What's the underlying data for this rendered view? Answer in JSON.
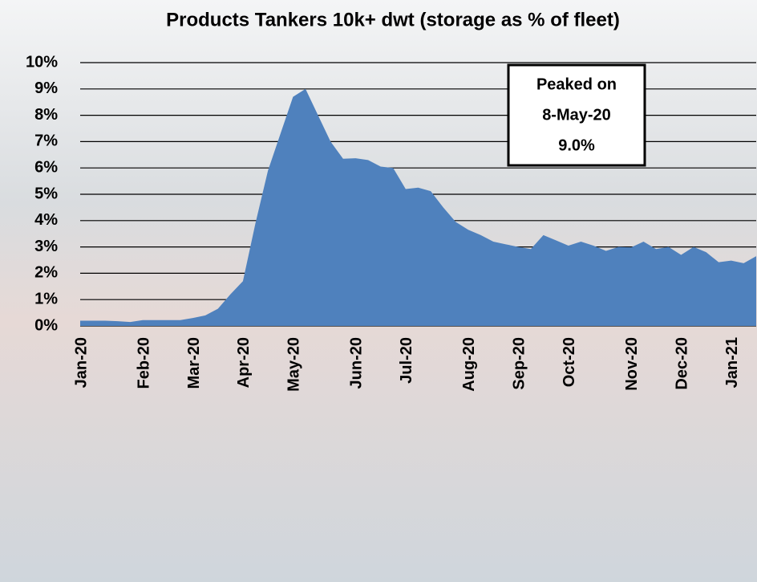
{
  "chart_data": {
    "type": "area",
    "title": "Products Tankers 10k+ dwt (storage as % of fleet)",
    "categories": [
      "Jan-20",
      null,
      null,
      null,
      null,
      "Feb-20",
      null,
      null,
      null,
      "Mar-20",
      null,
      null,
      null,
      "Apr-20",
      null,
      null,
      null,
      "May-20",
      null,
      null,
      null,
      null,
      "Jun-20",
      null,
      null,
      null,
      "Jul-20",
      null,
      null,
      null,
      null,
      "Aug-20",
      null,
      null,
      null,
      "Sep-20",
      null,
      null,
      null,
      "Oct-20",
      null,
      null,
      null,
      null,
      "Nov-20",
      null,
      null,
      null,
      "Dec-20",
      null,
      null,
      null,
      "Jan-21",
      null,
      null
    ],
    "values": [
      0.2,
      0.2,
      0.2,
      0.18,
      0.15,
      0.22,
      0.22,
      0.22,
      0.22,
      0.3,
      0.4,
      0.65,
      1.2,
      1.7,
      3.9,
      5.9,
      7.3,
      8.7,
      9.0,
      8.0,
      7.0,
      6.35,
      6.37,
      6.3,
      6.05,
      6.0,
      5.2,
      5.25,
      5.12,
      4.5,
      3.95,
      3.65,
      3.45,
      3.2,
      3.1,
      3.0,
      2.92,
      3.45,
      3.25,
      3.05,
      3.2,
      3.05,
      2.85,
      3.0,
      2.98,
      3.2,
      2.92,
      3.0,
      2.7,
      3.0,
      2.8,
      2.42,
      2.48,
      2.38,
      2.65
    ],
    "color": "#4f81bd",
    "ylim": [
      0,
      10
    ],
    "yticks": [
      {
        "value": 0,
        "label": "0%"
      },
      {
        "value": 1,
        "label": "1%"
      },
      {
        "value": 2,
        "label": "2%"
      },
      {
        "value": 3,
        "label": "3%"
      },
      {
        "value": 4,
        "label": "4%"
      },
      {
        "value": 5,
        "label": "5%"
      },
      {
        "value": 6,
        "label": "6%"
      },
      {
        "value": 7,
        "label": "7%"
      },
      {
        "value": 8,
        "label": "8%"
      },
      {
        "value": 9,
        "label": "9%"
      },
      {
        "value": 10,
        "label": "10%"
      }
    ],
    "grid": true,
    "annotation": [
      "Peaked on",
      "8-May-20",
      "9.0%"
    ]
  }
}
